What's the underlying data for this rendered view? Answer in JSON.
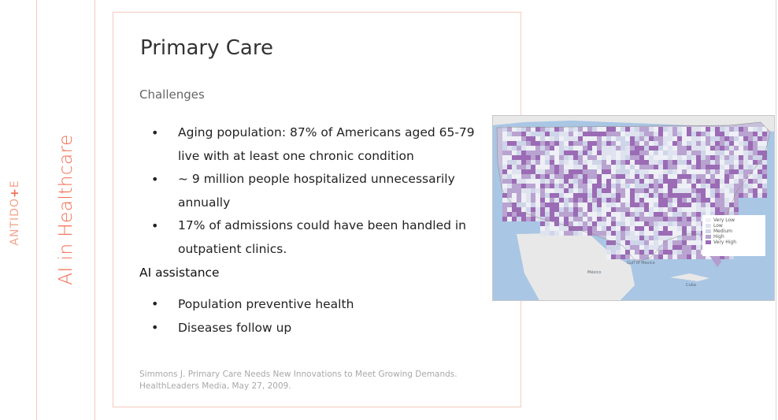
{
  "sidebar": {
    "title": "AI in Healthcare",
    "logo_text": "ANTIDO",
    "logo_mark": "+",
    "logo_suffix": "E"
  },
  "slide": {
    "title": "Primary Care",
    "subtitle": "Challenges",
    "challenges": [
      "Aging population: 87% of Americans aged 65-79 live with at least one chronic condition",
      "~ 9 million people hospitalized unnecessarily annually",
      "17% of admissions could have been handled in outpatient clinics."
    ],
    "ai_heading": "AI assistance",
    "ai_items": [
      "Population preventive health",
      "Diseases follow up"
    ],
    "citation": "Simmons J. Primary Care Needs New Innovations to Meet Growing Demands. HealthLeaders Media, May 27, 2009."
  },
  "map": {
    "legend": [
      {
        "label": "Very Low",
        "color": "#eef0f6"
      },
      {
        "label": "Low",
        "color": "#dfe3ef"
      },
      {
        "label": "Medium",
        "color": "#cfd5e9"
      },
      {
        "label": "High",
        "color": "#b9a3d0"
      },
      {
        "label": "Very High",
        "color": "#9b6bb5"
      }
    ],
    "labels": {
      "gulf": "Gulf of Mexico",
      "mexico": "México",
      "cuba": "Cuba"
    },
    "colors": {
      "water": "#a9c6e4",
      "land": "#e8e8e8",
      "accent": "#9b6bb5"
    }
  }
}
